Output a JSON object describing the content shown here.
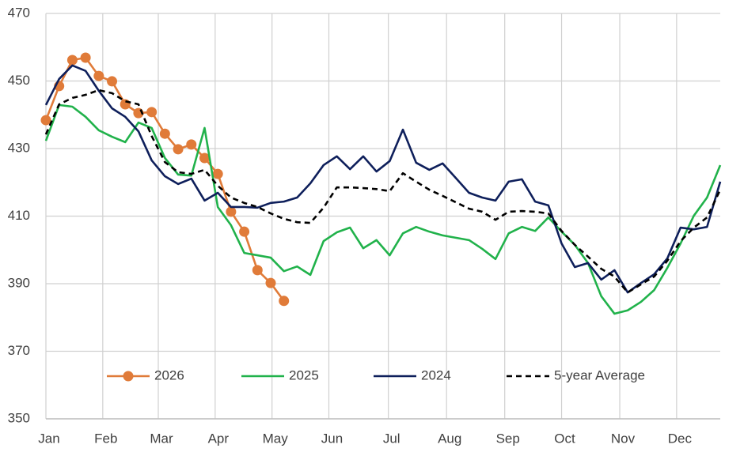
{
  "chart_data": {
    "type": "line",
    "x": [
      1,
      2,
      3,
      4,
      5,
      6,
      7,
      8,
      9,
      10,
      11,
      12,
      13,
      14,
      15,
      16,
      17,
      18,
      19,
      20,
      21,
      22,
      23,
      24,
      25,
      26,
      27,
      28,
      29,
      30,
      31,
      32,
      33,
      34,
      35,
      36,
      37,
      38,
      39,
      40,
      41,
      42,
      43,
      44,
      45,
      46,
      47,
      48,
      49,
      50,
      51,
      52
    ],
    "xlim": [
      1,
      52
    ],
    "xticks": [
      {
        "value": 1,
        "label": "Jan"
      },
      {
        "value": 5.3,
        "label": "Feb"
      },
      {
        "value": 9.5,
        "label": "Mar"
      },
      {
        "value": 13.8,
        "label": "Apr"
      },
      {
        "value": 18.1,
        "label": "May"
      },
      {
        "value": 22.4,
        "label": "Jun"
      },
      {
        "value": 26.9,
        "label": "Jul"
      },
      {
        "value": 31.3,
        "label": "Aug"
      },
      {
        "value": 35.7,
        "label": "Sep"
      },
      {
        "value": 40.0,
        "label": "Oct"
      },
      {
        "value": 44.4,
        "label": "Nov"
      },
      {
        "value": 48.7,
        "label": "Dec"
      }
    ],
    "ylim": [
      350,
      470
    ],
    "yticks": [
      350,
      370,
      390,
      410,
      430,
      450,
      470
    ],
    "grid": true,
    "legend": "bottom",
    "series": [
      {
        "name": "2026",
        "color": "#e07b39",
        "markers": true,
        "dashed": false,
        "values": [
          438.4,
          448.5,
          456.2,
          456.9,
          451.5,
          449.9,
          443.1,
          440.5,
          440.8,
          434.4,
          429.8,
          431.2,
          427.2,
          422.5,
          411.3,
          405.4,
          394.0,
          390.2,
          384.9,
          null,
          null,
          null,
          null,
          null,
          null,
          null,
          null,
          null,
          null,
          null,
          null,
          null,
          null,
          null,
          null,
          null,
          null,
          null,
          null,
          null,
          null,
          null,
          null,
          null,
          null,
          null,
          null,
          null,
          null,
          null,
          null,
          null
        ]
      },
      {
        "name": "2025",
        "color": "#21b24b",
        "markers": false,
        "dashed": false,
        "values": [
          432.3,
          442.9,
          442.4,
          439.4,
          435.4,
          433.5,
          431.9,
          437.7,
          436.1,
          427.2,
          422.3,
          422.0,
          436.1,
          412.7,
          407.3,
          399.1,
          398.4,
          397.7,
          393.7,
          395.1,
          392.6,
          402.6,
          405.2,
          406.6,
          400.5,
          402.9,
          398.4,
          404.9,
          406.8,
          405.4,
          404.3,
          403.6,
          402.9,
          400.3,
          397.3,
          404.9,
          406.8,
          405.6,
          409.6,
          405.4,
          401.5,
          396.1,
          386.3,
          381.1,
          382.1,
          384.6,
          388.1,
          394.7,
          401.9,
          410.1,
          415.5,
          425.1
        ]
      },
      {
        "name": "2024",
        "color": "#0e1f5b",
        "markers": false,
        "dashed": false,
        "values": [
          442.9,
          450.6,
          454.6,
          453.0,
          447.1,
          441.9,
          439.4,
          435.1,
          426.5,
          421.8,
          419.5,
          421.1,
          414.6,
          416.9,
          412.7,
          412.7,
          412.5,
          413.9,
          414.3,
          415.5,
          419.7,
          425.1,
          427.7,
          423.9,
          427.7,
          423.2,
          426.3,
          435.6,
          425.8,
          423.7,
          425.6,
          421.3,
          416.9,
          415.5,
          414.6,
          420.2,
          420.9,
          414.3,
          413.2,
          401.9,
          394.9,
          396.1,
          391.2,
          394.0,
          387.4,
          390.2,
          392.8,
          397.5,
          406.6,
          406.1,
          406.8,
          420.2
        ]
      },
      {
        "name": "5-year Average",
        "color": "#000000",
        "markers": false,
        "dashed": true,
        "values": [
          434.2,
          443.1,
          445.0,
          445.9,
          447.3,
          446.4,
          444.0,
          443.1,
          433.7,
          426.0,
          423.0,
          422.5,
          423.7,
          419.0,
          415.5,
          413.9,
          412.7,
          410.8,
          409.2,
          408.2,
          408.0,
          412.5,
          418.5,
          418.5,
          418.3,
          418.0,
          417.4,
          422.7,
          420.2,
          417.8,
          416.0,
          414.1,
          412.2,
          411.3,
          408.9,
          411.3,
          411.5,
          411.3,
          410.8,
          405.6,
          401.5,
          398.0,
          394.4,
          392.1,
          387.4,
          389.8,
          392.1,
          396.8,
          402.6,
          406.6,
          409.6,
          417.8
        ]
      }
    ]
  }
}
